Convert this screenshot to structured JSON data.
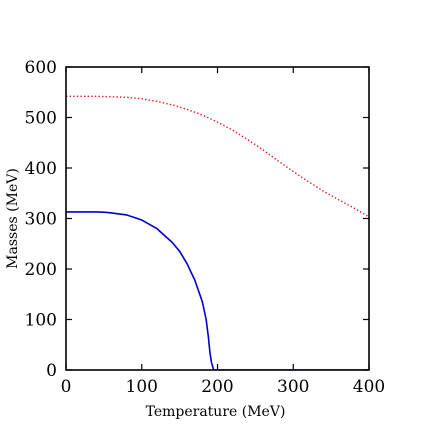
{
  "chart_data": {
    "type": "line",
    "title": "",
    "xlabel": "Temperature (MeV)",
    "ylabel": "Masses (MeV)",
    "xlim": [
      0,
      400
    ],
    "ylim": [
      0,
      600
    ],
    "xticks": [
      0,
      100,
      200,
      300,
      400
    ],
    "yticks": [
      0,
      100,
      200,
      300,
      400,
      500,
      600
    ],
    "grid": false,
    "legend": "none",
    "series": [
      {
        "color": "#e8161b",
        "style": "dotted",
        "x": [
          0,
          20,
          40,
          60,
          80,
          100,
          120,
          140,
          160,
          180,
          200,
          220,
          240,
          260,
          280,
          300,
          320,
          340,
          360,
          380,
          400
        ],
        "y": [
          542,
          542,
          542,
          541,
          540,
          537,
          532,
          525,
          516,
          505,
          491,
          475,
          456,
          436,
          414,
          393,
          373,
          354,
          337,
          321,
          303
        ]
      },
      {
        "color": "#0000cc",
        "style": "solid",
        "x": [
          0,
          20,
          40,
          50,
          60,
          80,
          100,
          120,
          140,
          150,
          160,
          170,
          180,
          185,
          188,
          190,
          192,
          194,
          195,
          196,
          198,
          200,
          250,
          300,
          350,
          400
        ],
        "y": [
          313,
          313,
          313,
          312.5,
          311,
          307,
          297,
          280,
          253,
          235,
          210,
          178,
          135,
          100,
          65,
          35,
          15,
          5,
          0,
          0,
          0,
          0,
          0,
          0,
          0,
          0
        ]
      }
    ]
  }
}
